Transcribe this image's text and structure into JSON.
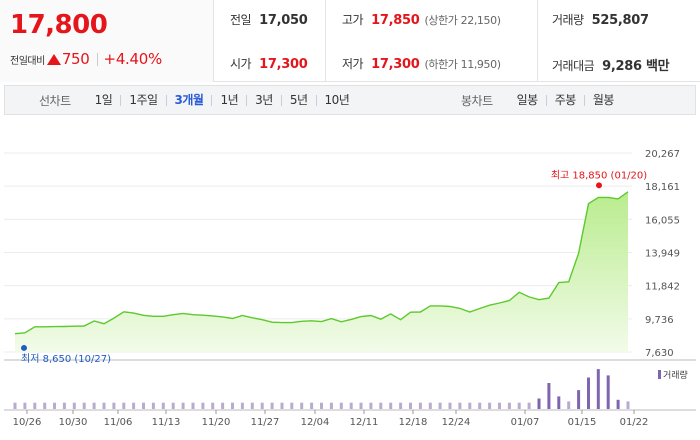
{
  "summary": {
    "price": "17,800",
    "change_label": "전일대비",
    "change_value": "750",
    "change_rate": "+4.40%",
    "prev_close_label": "전일",
    "prev_close": "17,050",
    "open_label": "시가",
    "open": "17,300",
    "high_label": "고가",
    "high": "17,850",
    "high_sub": "(상한가 22,150)",
    "low_label": "저가",
    "low": "17,300",
    "low_sub": "(하한가 11,950)",
    "volume_label": "거래량",
    "volume": "525,807",
    "value_label": "거래대금",
    "value": "9,286 백만"
  },
  "tabs": {
    "line_title": "선차트",
    "periods": [
      "1일",
      "1주일",
      "3개월",
      "1년",
      "3년",
      "5년",
      "10년"
    ],
    "active_period": "3개월",
    "candle_title": "봉차트",
    "candles": [
      "일봉",
      "주봉",
      "월봉"
    ]
  },
  "colors": {
    "up": "#e4151b",
    "line": "#5dc92e",
    "area_top": "#b9ec8e",
    "area_bottom": "#f2fbe9",
    "low_marker": "#1f5bc4",
    "volume": "#7f65b0",
    "active_tab": "#2a5bd7"
  },
  "chart_data": {
    "type": "area",
    "x_labels": [
      "10/26",
      "10/30",
      "11/06",
      "11/13",
      "11/20",
      "11/27",
      "12/04",
      "12/11",
      "12/18",
      "12/24",
      "01/07",
      "01/15",
      "01/22"
    ],
    "y_ticks": [
      "20,267",
      "18,161",
      "16,055",
      "13,949",
      "11,842",
      "9,736",
      "7,630"
    ],
    "ylim": [
      7630,
      20267
    ],
    "y_values": [
      8790,
      8850,
      9230,
      9230,
      9240,
      9250,
      9270,
      9280,
      9600,
      9430,
      9780,
      10180,
      10100,
      9960,
      9900,
      9900,
      10000,
      10080,
      10000,
      9970,
      9920,
      9860,
      9760,
      9950,
      9800,
      9680,
      9520,
      9500,
      9500,
      9580,
      9610,
      9560,
      9750,
      9550,
      9700,
      9880,
      9950,
      9710,
      10050,
      9680,
      10160,
      10170,
      10560,
      10560,
      10520,
      10400,
      10170,
      10390,
      10600,
      10740,
      10900,
      11420,
      11130,
      10950,
      11050,
      12040,
      12090,
      13900,
      17050,
      17450,
      17450,
      17350,
      17800
    ],
    "high_annotation": "최고 18,850 (01/20)",
    "high_value": 18850,
    "low_annotation": "최저 8,650 (10/27)",
    "low_value": 8650,
    "volume_label": "거래량",
    "volume": [
      0.15,
      0.15,
      0.15,
      0.15,
      0.15,
      0.15,
      0.15,
      0.15,
      0.15,
      0.15,
      0.15,
      0.15,
      0.15,
      0.15,
      0.15,
      0.15,
      0.15,
      0.15,
      0.15,
      0.15,
      0.15,
      0.15,
      0.15,
      0.15,
      0.15,
      0.15,
      0.15,
      0.15,
      0.15,
      0.15,
      0.15,
      0.15,
      0.15,
      0.15,
      0.15,
      0.15,
      0.15,
      0.15,
      0.15,
      0.15,
      0.15,
      0.15,
      0.15,
      0.15,
      0.15,
      0.15,
      0.15,
      0.15,
      0.15,
      0.15,
      0.15,
      0.15,
      0.15,
      0.25,
      0.62,
      0.3,
      0.18,
      0.45,
      0.75,
      0.95,
      0.8,
      0.22,
      0.18
    ],
    "grid": true
  }
}
